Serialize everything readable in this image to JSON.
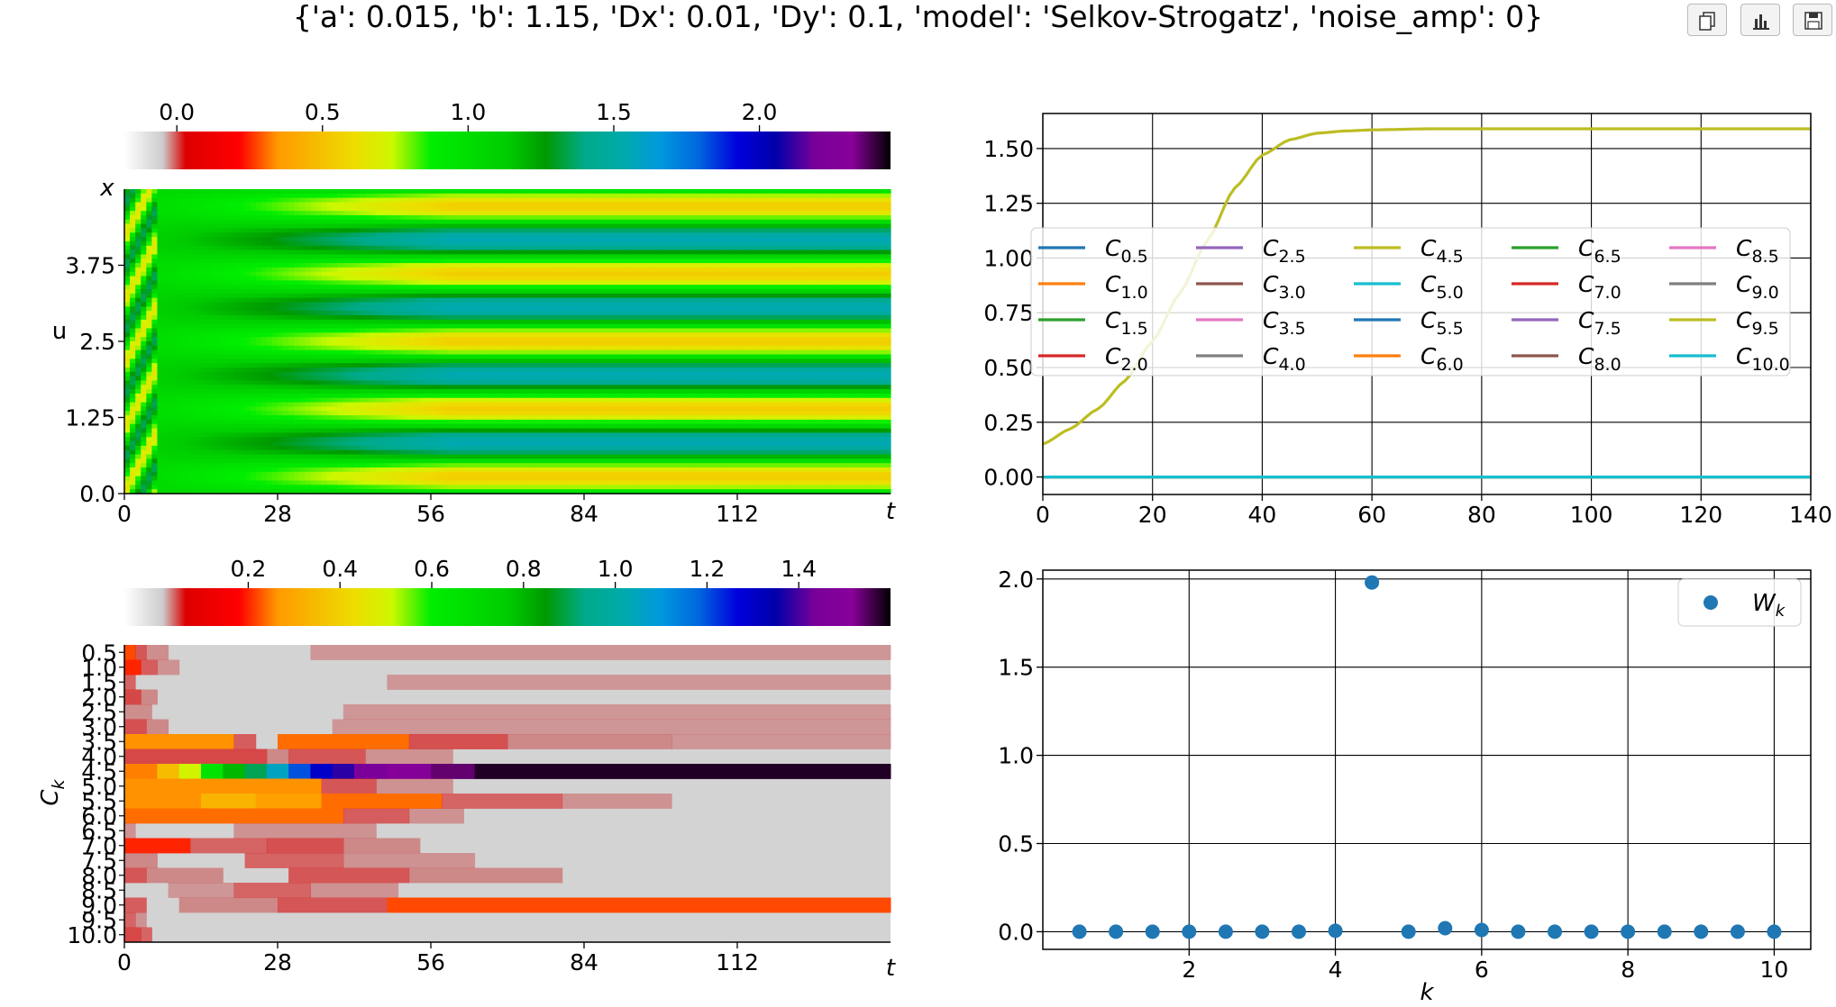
{
  "figure": {
    "title": "{'a': 0.015, 'b': 1.15, 'Dx': 0.01, 'Dy': 0.1, 'model': 'Selkov-Strogatz', 'noise_amp': 0}"
  },
  "toolbar": {
    "buttons": [
      {
        "icon": "copy-icon"
      },
      {
        "icon": "bar-chart-icon"
      },
      {
        "icon": "save-icon"
      }
    ]
  },
  "chart_data": [
    {
      "type": "heatmap",
      "title": "",
      "colorbar": {
        "ticks": [
          "0.0",
          "0.5",
          "1.0",
          "1.5",
          "2.0"
        ],
        "tick_values": [
          0.0,
          0.5,
          1.0,
          1.5,
          2.0
        ],
        "range": [
          -0.18,
          2.45
        ],
        "colormap": "nipy_spectral_r"
      },
      "xlabel": "t",
      "ylabel": "u",
      "ylabel_top": "x",
      "x_ticks": [
        "0",
        "28",
        "56",
        "84",
        "112"
      ],
      "x_tick_values": [
        0,
        28,
        56,
        84,
        112
      ],
      "xlim": [
        0,
        140
      ],
      "y_ticks": [
        "0.0",
        "1.25",
        "2.5",
        "3.75"
      ],
      "y_tick_values": [
        0.0,
        1.25,
        2.5,
        3.75
      ],
      "ylim": [
        0,
        5
      ],
      "pattern": {
        "stripes": 9,
        "low": 0.55,
        "high": 1.55,
        "transient_t": 60
      }
    },
    {
      "type": "line",
      "title": "",
      "xlim": [
        0,
        140
      ],
      "ylim": [
        -0.08,
        1.66
      ],
      "x_ticks": [
        "0",
        "20",
        "40",
        "60",
        "80",
        "100",
        "120",
        "140"
      ],
      "x_tick_values": [
        0,
        20,
        40,
        60,
        80,
        100,
        120,
        140
      ],
      "y_ticks": [
        "0.00",
        "0.25",
        "0.50",
        "0.75",
        "1.00",
        "1.25",
        "1.50"
      ],
      "y_tick_values": [
        0.0,
        0.25,
        0.5,
        0.75,
        1.0,
        1.25,
        1.5
      ],
      "grid": true,
      "legend": {
        "placement": "center",
        "columns": 5
      },
      "series": [
        {
          "name": "C",
          "sub": "0.5",
          "color": "#1f77b4",
          "x": [
            0,
            140
          ],
          "y": [
            0,
            0
          ]
        },
        {
          "name": "C",
          "sub": "1.0",
          "color": "#ff7f0e",
          "x": [
            0,
            140
          ],
          "y": [
            0,
            0
          ]
        },
        {
          "name": "C",
          "sub": "1.5",
          "color": "#2ca02c",
          "x": [
            0,
            140
          ],
          "y": [
            0,
            0
          ]
        },
        {
          "name": "C",
          "sub": "2.0",
          "color": "#d62728",
          "x": [
            0,
            140
          ],
          "y": [
            0,
            0
          ]
        },
        {
          "name": "C",
          "sub": "2.5",
          "color": "#9467bd",
          "x": [
            0,
            140
          ],
          "y": [
            0,
            0
          ]
        },
        {
          "name": "C",
          "sub": "3.0",
          "color": "#8c564b",
          "x": [
            0,
            140
          ],
          "y": [
            0,
            0
          ]
        },
        {
          "name": "C",
          "sub": "3.5",
          "color": "#e377c2",
          "x": [
            0,
            140
          ],
          "y": [
            0,
            0
          ]
        },
        {
          "name": "C",
          "sub": "4.0",
          "color": "#7f7f7f",
          "x": [
            0,
            140
          ],
          "y": [
            0,
            0
          ]
        },
        {
          "name": "C",
          "sub": "4.5",
          "color": "#bcbd22",
          "x": [
            0,
            5,
            10,
            15,
            20,
            25,
            30,
            35,
            40,
            45,
            50,
            55,
            60,
            70,
            80,
            100,
            120,
            140
          ],
          "y": [
            0.15,
            0.22,
            0.31,
            0.44,
            0.62,
            0.84,
            1.08,
            1.32,
            1.47,
            1.54,
            1.57,
            1.58,
            1.585,
            1.59,
            1.59,
            1.59,
            1.59,
            1.59
          ]
        },
        {
          "name": "C",
          "sub": "5.0",
          "color": "#17becf",
          "x": [
            0,
            140
          ],
          "y": [
            0,
            0
          ]
        },
        {
          "name": "C",
          "sub": "5.5",
          "color": "#1f77b4",
          "x": [
            0,
            140
          ],
          "y": [
            0,
            0
          ]
        },
        {
          "name": "C",
          "sub": "6.0",
          "color": "#ff7f0e",
          "x": [
            0,
            140
          ],
          "y": [
            0,
            0
          ]
        },
        {
          "name": "C",
          "sub": "6.5",
          "color": "#2ca02c",
          "x": [
            0,
            140
          ],
          "y": [
            0,
            0
          ]
        },
        {
          "name": "C",
          "sub": "7.0",
          "color": "#d62728",
          "x": [
            0,
            140
          ],
          "y": [
            0,
            0
          ]
        },
        {
          "name": "C",
          "sub": "7.5",
          "color": "#9467bd",
          "x": [
            0,
            140
          ],
          "y": [
            0,
            0
          ]
        },
        {
          "name": "C",
          "sub": "8.0",
          "color": "#8c564b",
          "x": [
            0,
            140
          ],
          "y": [
            0,
            0
          ]
        },
        {
          "name": "C",
          "sub": "8.5",
          "color": "#e377c2",
          "x": [
            0,
            140
          ],
          "y": [
            0,
            0
          ]
        },
        {
          "name": "C",
          "sub": "9.0",
          "color": "#7f7f7f",
          "x": [
            0,
            140
          ],
          "y": [
            0,
            0
          ]
        },
        {
          "name": "C",
          "sub": "9.5",
          "color": "#bcbd22",
          "x": [
            0,
            140
          ],
          "y": [
            0,
            0
          ]
        },
        {
          "name": "C",
          "sub": "10.0",
          "color": "#17becf",
          "x": [
            0,
            140
          ],
          "y": [
            0,
            0
          ]
        }
      ]
    },
    {
      "type": "heatmap",
      "title": "",
      "colorbar": {
        "ticks": [
          "0.2",
          "0.4",
          "0.6",
          "0.8",
          "1.0",
          "1.2",
          "1.4"
        ],
        "tick_values": [
          0.2,
          0.4,
          0.6,
          0.8,
          1.0,
          1.2,
          1.4
        ],
        "range": [
          -0.07,
          1.6
        ],
        "colormap": "nipy_spectral_r"
      },
      "xlabel": "t",
      "ylabel": "C",
      "ylabel_sub": "k",
      "x_ticks": [
        "0",
        "28",
        "56",
        "84",
        "112"
      ],
      "x_tick_values": [
        0,
        28,
        56,
        84,
        112
      ],
      "xlim": [
        0,
        140
      ],
      "y_categories": [
        "0.5",
        "1.0",
        "1.5",
        "2.0",
        "2.5",
        "3.0",
        "3.5",
        "4.0",
        "4.5",
        "5.0",
        "5.5",
        "6.0",
        "6.5",
        "7.0",
        "7.5",
        "8.0",
        "8.5",
        "9.0",
        "9.5",
        "10.0"
      ],
      "rows": [
        [
          [
            0,
            2,
            0.22
          ],
          [
            2,
            4,
            0.14
          ],
          [
            4,
            8,
            0.07
          ],
          [
            34,
            140,
            0.05
          ]
        ],
        [
          [
            0,
            3,
            0.2
          ],
          [
            3,
            6,
            0.12
          ],
          [
            6,
            10,
            0.06
          ]
        ],
        [
          [
            0,
            2,
            0.1
          ],
          [
            48,
            140,
            0.05
          ]
        ],
        [
          [
            0,
            3,
            0.18
          ],
          [
            3,
            6,
            0.08
          ]
        ],
        [
          [
            0,
            5,
            0.07
          ],
          [
            40,
            140,
            0.05
          ]
        ],
        [
          [
            0,
            4,
            0.16
          ],
          [
            4,
            8,
            0.08
          ],
          [
            38,
            140,
            0.05
          ]
        ],
        [
          [
            0,
            20,
            0.26
          ],
          [
            20,
            24,
            0.12
          ],
          [
            28,
            52,
            0.24
          ],
          [
            52,
            70,
            0.16
          ],
          [
            70,
            100,
            0.08
          ],
          [
            100,
            140,
            0.05
          ]
        ],
        [
          [
            0,
            26,
            0.18
          ],
          [
            26,
            30,
            0.08
          ],
          [
            30,
            44,
            0.14
          ],
          [
            44,
            60,
            0.06
          ]
        ],
        [
          [
            0,
            6,
            0.25
          ],
          [
            6,
            10,
            0.35
          ],
          [
            10,
            14,
            0.5
          ],
          [
            14,
            18,
            0.65
          ],
          [
            18,
            22,
            0.8
          ],
          [
            22,
            26,
            0.9
          ],
          [
            26,
            30,
            1.05
          ],
          [
            30,
            34,
            1.2
          ],
          [
            34,
            38,
            1.3
          ],
          [
            38,
            42,
            1.38
          ],
          [
            42,
            48,
            1.45
          ],
          [
            48,
            56,
            1.5
          ],
          [
            56,
            64,
            1.54
          ],
          [
            64,
            140,
            1.58
          ]
        ],
        [
          [
            0,
            36,
            0.26
          ],
          [
            36,
            46,
            0.14
          ],
          [
            46,
            60,
            0.06
          ]
        ],
        [
          [
            0,
            14,
            0.26
          ],
          [
            14,
            24,
            0.33
          ],
          [
            24,
            36,
            0.28
          ],
          [
            36,
            58,
            0.24
          ],
          [
            58,
            80,
            0.1
          ],
          [
            80,
            100,
            0.06
          ]
        ],
        [
          [
            0,
            40,
            0.24
          ],
          [
            40,
            52,
            0.12
          ],
          [
            52,
            62,
            0.06
          ]
        ],
        [
          [
            0,
            2,
            0.06
          ],
          [
            20,
            46,
            0.06
          ]
        ],
        [
          [
            0,
            12,
            0.2
          ],
          [
            12,
            26,
            0.1
          ],
          [
            26,
            40,
            0.16
          ],
          [
            40,
            54,
            0.08
          ]
        ],
        [
          [
            0,
            6,
            0.08
          ],
          [
            22,
            40,
            0.1
          ],
          [
            40,
            64,
            0.06
          ]
        ],
        [
          [
            0,
            4,
            0.14
          ],
          [
            4,
            18,
            0.08
          ],
          [
            30,
            52,
            0.14
          ],
          [
            52,
            80,
            0.08
          ]
        ],
        [
          [
            8,
            20,
            0.05
          ],
          [
            20,
            34,
            0.1
          ],
          [
            34,
            50,
            0.06
          ]
        ],
        [
          [
            0,
            4,
            0.12
          ],
          [
            10,
            28,
            0.08
          ],
          [
            28,
            48,
            0.14
          ],
          [
            48,
            140,
            0.22
          ]
        ],
        [
          [
            0,
            2,
            0.1
          ],
          [
            2,
            4,
            0.06
          ]
        ],
        [
          [
            0,
            3,
            0.18
          ],
          [
            3,
            5,
            0.1
          ]
        ]
      ],
      "background_color": "#d3d3d3"
    },
    {
      "type": "scatter",
      "title": "",
      "xlabel": "k",
      "xlim": [
        0,
        10.5
      ],
      "ylim": [
        -0.1,
        2.05
      ],
      "x_ticks": [
        "2",
        "4",
        "6",
        "8",
        "10"
      ],
      "x_tick_values": [
        2,
        4,
        6,
        8,
        10
      ],
      "y_ticks": [
        "0.0",
        "0.5",
        "1.0",
        "1.5",
        "2.0"
      ],
      "y_tick_values": [
        0.0,
        0.5,
        1.0,
        1.5,
        2.0
      ],
      "grid": true,
      "legend": {
        "placement": "top-right"
      },
      "series": [
        {
          "name": "W",
          "sub": "k",
          "color": "#1f77b4",
          "x": [
            0.5,
            1.0,
            1.5,
            2.0,
            2.5,
            3.0,
            3.5,
            4.0,
            4.5,
            5.0,
            5.5,
            6.0,
            6.5,
            7.0,
            7.5,
            8.0,
            8.5,
            9.0,
            9.5,
            10.0
          ],
          "y": [
            0,
            0,
            0,
            0,
            0,
            0,
            0,
            0.005,
            1.98,
            0,
            0.02,
            0.01,
            0,
            0,
            0,
            0,
            0,
            0,
            0,
            0
          ]
        }
      ]
    }
  ]
}
